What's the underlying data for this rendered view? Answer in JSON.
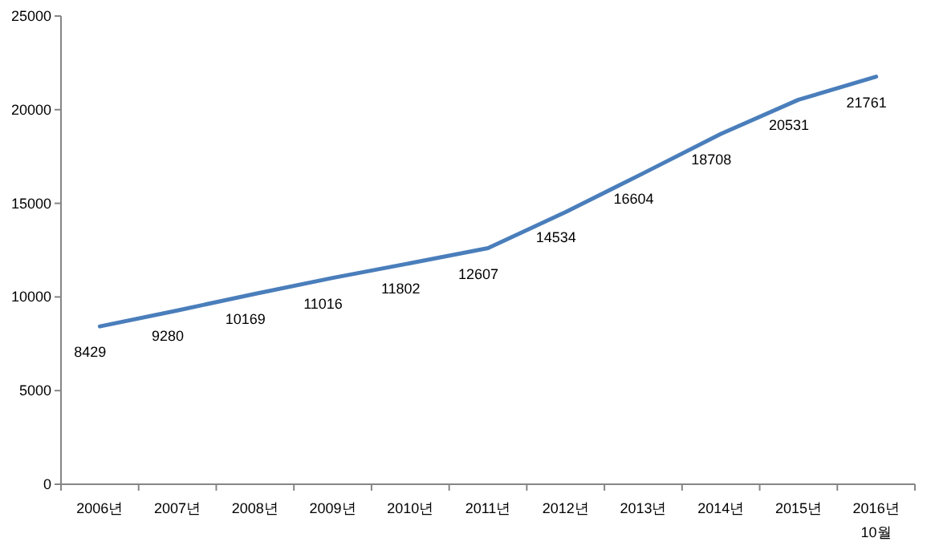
{
  "chart_data": {
    "type": "line",
    "categories": [
      "2006년",
      "2007년",
      "2008년",
      "2009년",
      "2010년",
      "2011년",
      "2012년",
      "2013년",
      "2014년",
      "2015년",
      "2016년\n10월"
    ],
    "series": [
      {
        "color": "#4a7ebb",
        "values": [
          8429,
          9280,
          10169,
          11016,
          11802,
          12607,
          14534,
          16604,
          18708,
          20531,
          21761
        ]
      }
    ],
    "ylim": [
      0,
      25000
    ],
    "yticks": [
      0,
      5000,
      10000,
      15000,
      20000,
      25000
    ],
    "grid": false,
    "marker": "none",
    "line_style": "solid",
    "data_labels": true
  }
}
